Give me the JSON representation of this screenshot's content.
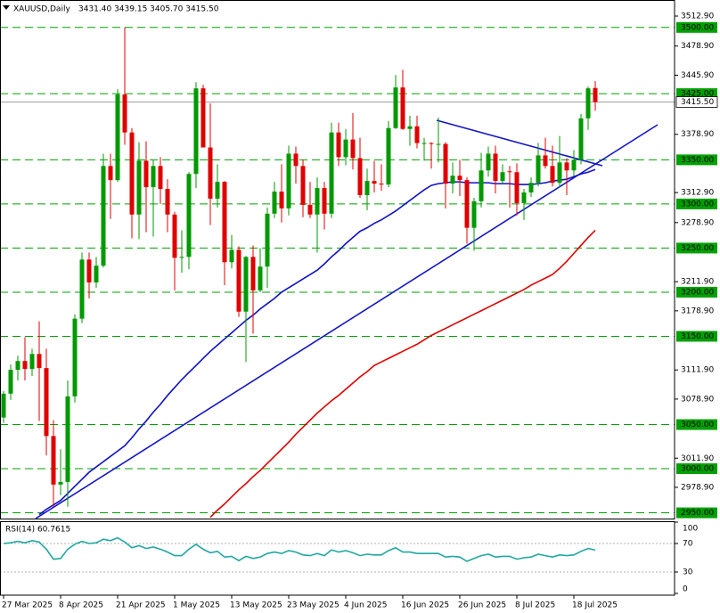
{
  "chart_data": [
    {
      "type": "candlestick",
      "title": "XAUUSD,Daily",
      "subtitle": "3431.40 3439.15 3405.70 3415.50",
      "categories": [
        "27 Mar 2025",
        null,
        null,
        null,
        null,
        null,
        null,
        null,
        "8 Apr 2025",
        null,
        null,
        null,
        null,
        null,
        null,
        null,
        "21 Apr 2025",
        null,
        null,
        null,
        null,
        null,
        null,
        null,
        "1 May 2025",
        null,
        null,
        null,
        null,
        null,
        null,
        null,
        "13 May 2025",
        null,
        null,
        null,
        null,
        null,
        null,
        null,
        "23 May 2025",
        null,
        null,
        null,
        null,
        null,
        null,
        null,
        "4 Jun 2025",
        null,
        null,
        null,
        null,
        null,
        null,
        null,
        "16 Jun 2025",
        null,
        null,
        null,
        null,
        null,
        null,
        null,
        "26 Jun 2025",
        null,
        null,
        null,
        null,
        null,
        null,
        null,
        "8 Jul 2025",
        null,
        null,
        null,
        null,
        null,
        null,
        null,
        "18 Jul 2025",
        null,
        null,
        null
      ],
      "candles": {
        "up_color": "#009a00",
        "down_color": "#e00000",
        "open": [
          3058,
          3085,
          3112,
          3122,
          3113,
          3130,
          3114,
          3037,
          2982,
          2985,
          3082,
          3170,
          3237,
          3211,
          3230,
          3343,
          3327,
          3424,
          3381,
          3288,
          3349,
          3319,
          3343,
          3317,
          3288,
          3239,
          3240,
          3334,
          3431,
          3364,
          3306,
          3325,
          3234,
          3248,
          3178,
          3240,
          3202,
          3229,
          3289,
          3314,
          3295,
          3357,
          3343,
          3299,
          3288,
          3318,
          3289,
          3381,
          3353,
          3373,
          3352,
          3310,
          3326,
          3323,
          3322,
          3386,
          3432,
          3385,
          3388,
          3369,
          3369,
          3368,
          3368,
          3323,
          3332,
          3327,
          3273,
          3303,
          3338,
          3357,
          3326,
          3337,
          3336,
          3301,
          3313,
          3324,
          3355,
          3343,
          3324,
          3347,
          3338,
          3350,
          3397,
          3431.4
        ],
        "high": [
          3088,
          3118,
          3128,
          3149,
          3136,
          3167,
          3136,
          3055,
          3022,
          3100,
          3175,
          3245,
          3245,
          3240,
          3357,
          3357,
          3430,
          3500,
          3386,
          3370,
          3371,
          3350,
          3353,
          3328,
          3291,
          3270,
          3336,
          3438,
          3435,
          3414,
          3345,
          3326,
          3265,
          3252,
          3241,
          3253,
          3250,
          3296,
          3325,
          3345,
          3366,
          3365,
          3350,
          3325,
          3330,
          3325,
          3392,
          3392,
          3385,
          3403,
          3375,
          3340,
          3349,
          3345,
          3394,
          3446,
          3452,
          3400,
          3400,
          3375,
          3370,
          3398,
          3370,
          3347,
          3350,
          3330,
          3307,
          3358,
          3365,
          3366,
          3345,
          3343,
          3346,
          3317,
          3330,
          3369,
          3375,
          3366,
          3377,
          3352,
          3361,
          3402,
          3433,
          3439.15
        ],
        "low": [
          3052,
          3078,
          3100,
          3100,
          3105,
          3054,
          3015,
          2957,
          2970,
          2957,
          3075,
          3165,
          3193,
          3205,
          3228,
          3283,
          3325,
          3367,
          3261,
          3260,
          3268,
          3263,
          3300,
          3268,
          3202,
          3222,
          3226,
          3318,
          3366,
          3276,
          3296,
          3208,
          3227,
          3172,
          3121,
          3153,
          3200,
          3205,
          3284,
          3279,
          3287,
          3323,
          3285,
          3284,
          3245,
          3271,
          3284,
          3343,
          3344,
          3339,
          3307,
          3293,
          3313,
          3315,
          3319,
          3385,
          3384,
          3366,
          3363,
          3349,
          3340,
          3347,
          3295,
          3312,
          3309,
          3255,
          3247,
          3296,
          3331,
          3312,
          3323,
          3296,
          3287,
          3282,
          3308,
          3320,
          3340,
          3320,
          3319,
          3310,
          3332,
          3345,
          3384,
          3405.7
        ],
        "close": [
          3085,
          3112,
          3122,
          3113,
          3130,
          3114,
          3037,
          2982,
          2985,
          3082,
          3170,
          3237,
          3211,
          3230,
          3343,
          3327,
          3424,
          3381,
          3288,
          3349,
          3319,
          3343,
          3317,
          3288,
          3239,
          3240,
          3334,
          3431,
          3364,
          3306,
          3325,
          3234,
          3248,
          3178,
          3240,
          3202,
          3229,
          3289,
          3314,
          3295,
          3357,
          3343,
          3299,
          3288,
          3318,
          3289,
          3381,
          3353,
          3373,
          3352,
          3310,
          3326,
          3323,
          3322,
          3386,
          3432,
          3385,
          3388,
          3369,
          3369,
          3368,
          3368,
          3323,
          3332,
          3327,
          3273,
          3303,
          3338,
          3357,
          3326,
          3336,
          3336,
          3301,
          3313,
          3324,
          3355,
          3343,
          3324,
          3347,
          3338,
          3350,
          3397,
          3431,
          3415.5
        ]
      },
      "series": [
        {
          "color": "#1010c8",
          "values": [
            null,
            null,
            null,
            null,
            null,
            2948,
            2954,
            2959,
            2964,
            2972,
            2980,
            2988,
            2996,
            3002,
            3008,
            3014,
            3020,
            3026,
            3035,
            3045,
            3054,
            3064,
            3073,
            3083,
            3092,
            3101,
            3109,
            3117,
            3125,
            3133,
            3140,
            3147,
            3154,
            3161,
            3168,
            3174,
            3181,
            3187,
            3193,
            3200,
            3205,
            3210,
            3215,
            3220,
            3225,
            3232,
            3240,
            3247,
            3255,
            3262,
            3269,
            3273,
            3278,
            3282,
            3287,
            3292,
            3298,
            3304,
            3310,
            3316,
            3321,
            3323,
            3324,
            3325,
            3325,
            3324,
            3324,
            3324,
            3324,
            3323,
            3323,
            3323,
            3322,
            3322,
            3322,
            3323,
            3324,
            3326,
            3327,
            3328,
            3331,
            3334,
            3336,
            3339
          ]
        },
        {
          "color": "#e00000",
          "values": [
            null,
            null,
            null,
            null,
            null,
            null,
            null,
            null,
            null,
            null,
            null,
            null,
            null,
            null,
            null,
            null,
            null,
            null,
            null,
            null,
            null,
            null,
            null,
            null,
            null,
            null,
            null,
            null,
            null,
            2945,
            2953,
            2960,
            2968,
            2976,
            2983,
            2991,
            2998,
            3006,
            3014,
            3022,
            3030,
            3039,
            3047,
            3055,
            3063,
            3070,
            3077,
            3083,
            3090,
            3097,
            3104,
            3110,
            3117,
            3121,
            3125,
            3129,
            3133,
            3137,
            3141,
            3146,
            3151,
            3155,
            3159,
            3163,
            3167,
            3171,
            3175,
            3179,
            3183,
            3187,
            3191,
            3195,
            3199,
            3203,
            3208,
            3212,
            3216,
            3220,
            3227,
            3235,
            3244,
            3253,
            3262,
            3270
          ]
        }
      ],
      "levels": [
        {
          "value": 3500,
          "label": "3500.00"
        },
        {
          "value": 3425,
          "label": "3425.00"
        },
        {
          "value": 3350,
          "label": "3350.00"
        },
        {
          "value": 3300,
          "label": "3300.00"
        },
        {
          "value": 3250,
          "label": "3250.00"
        },
        {
          "value": 3200,
          "label": "3200.00"
        },
        {
          "value": 3150,
          "label": "3150.00"
        },
        {
          "value": 3050,
          "label": "3050.00"
        },
        {
          "value": 3000,
          "label": "3000.00"
        },
        {
          "value": 2950,
          "label": "2950.00"
        }
      ],
      "level_color": "#00a000",
      "current_price": {
        "value": 3415.5,
        "label": "3415.50"
      },
      "ylim": [
        2943.5,
        3531.1
      ],
      "yticks": [
        {
          "value": 3512.9,
          "label": "3512.90"
        },
        {
          "value": 3478.9,
          "label": "3478.90"
        },
        {
          "value": 3445.9,
          "label": "3445.90"
        },
        {
          "value": 3378.9,
          "label": "3378.90"
        },
        {
          "value": 3312.9,
          "label": "3312.90"
        },
        {
          "value": 3278.9,
          "label": "3278.90"
        },
        {
          "value": 3211.9,
          "label": "3211.90"
        },
        {
          "value": 3178.9,
          "label": "3178.90"
        },
        {
          "value": 3111.9,
          "label": "3111.90"
        },
        {
          "value": 3078.9,
          "label": "3078.90"
        },
        {
          "value": 3011.9,
          "label": "3011.90"
        },
        {
          "value": 2978.9,
          "label": "2978.90"
        }
      ]
    },
    {
      "type": "line",
      "title": "RSI(14) 60.7615",
      "series": [
        {
          "color": "#20a8a0",
          "values": [
            70,
            71,
            73,
            71,
            74,
            72,
            62,
            48,
            49,
            62,
            69,
            73,
            70,
            71,
            76,
            74,
            78,
            72,
            64,
            67,
            63,
            65,
            62,
            58,
            53,
            53,
            62,
            69,
            62,
            57,
            59,
            51,
            52,
            46,
            52,
            49,
            51,
            56,
            58,
            56,
            60,
            58,
            54,
            53,
            56,
            53,
            61,
            58,
            60,
            57,
            53,
            55,
            54,
            54,
            60,
            64,
            58,
            58,
            56,
            56,
            56,
            56,
            51,
            52,
            51,
            45,
            49,
            53,
            55,
            51,
            52,
            52,
            48,
            50,
            51,
            55,
            53,
            51,
            54,
            53,
            54,
            59,
            63,
            60.7615
          ]
        }
      ],
      "ylim": [
        0,
        100
      ],
      "yticks": [
        100,
        70,
        30,
        0
      ]
    }
  ]
}
